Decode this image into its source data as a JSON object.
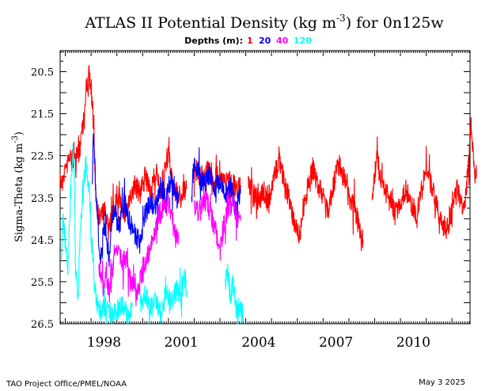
{
  "chart_data": {
    "type": "line",
    "title_main": "ATLAS II Potential Density (kg m",
    "title_exp": "-3",
    "title_tail": ") for 0n125w",
    "legend_label": "Depths (m):",
    "ylabel_main": "Sigma-Theta (kg m",
    "ylabel_exp": "-3",
    "ylabel_tail": ")",
    "x_ticks": [
      "1998",
      "2001",
      "2004",
      "2007",
      "2010"
    ],
    "x_range": [
      1996.8,
      2012.7
    ],
    "y_ticks": [
      "20.5",
      "21.5",
      "22.5",
      "23.5",
      "24.5",
      "25.5",
      "26.5"
    ],
    "y_range": [
      20.0,
      26.5
    ],
    "y_inverted": true,
    "grid": false,
    "legend_position": "top-center",
    "series": [
      {
        "name": "1",
        "color": "#ff0000",
        "segments": [
          [
            [
              1996.8,
              23.2
            ],
            [
              1997.0,
              22.8
            ],
            [
              1997.2,
              22.5
            ],
            [
              1997.4,
              22.6
            ],
            [
              1997.55,
              22.4
            ],
            [
              1997.65,
              21.8
            ],
            [
              1997.75,
              21.6
            ],
            [
              1997.8,
              21.0
            ],
            [
              1997.9,
              20.5
            ],
            [
              1998.0,
              20.9
            ],
            [
              1998.1,
              22.0
            ],
            [
              1998.2,
              23.6
            ],
            [
              1998.3,
              24.0
            ],
            [
              1998.5,
              23.8
            ],
            [
              1998.7,
              24.2
            ],
            [
              1998.9,
              23.7
            ],
            [
              1999.1,
              23.5
            ],
            [
              1999.3,
              23.9
            ],
            [
              1999.5,
              23.6
            ],
            [
              1999.7,
              23.2
            ],
            [
              1999.9,
              23.4
            ],
            [
              2000.1,
              23.0
            ],
            [
              2000.3,
              23.4
            ],
            [
              2000.5,
              22.9
            ],
            [
              2000.7,
              23.3
            ],
            [
              2000.9,
              22.8
            ],
            [
              2001.0,
              22.4
            ],
            [
              2001.1,
              23.0
            ],
            [
              2001.3,
              23.4
            ],
            [
              2001.5,
              23.5
            ],
            [
              2001.7,
              23.3
            ]
          ],
          [
            [
              2002.0,
              22.8
            ],
            [
              2002.2,
              22.9
            ],
            [
              2002.4,
              23.0
            ],
            [
              2002.6,
              22.8
            ],
            [
              2002.8,
              23.1
            ],
            [
              2003.0,
              22.9
            ],
            [
              2003.2,
              23.2
            ],
            [
              2003.4,
              23.0
            ],
            [
              2003.6,
              23.3
            ],
            [
              2003.8,
              23.2
            ]
          ],
          [
            [
              2004.1,
              23.1
            ],
            [
              2004.3,
              23.4
            ],
            [
              2004.5,
              23.6
            ],
            [
              2004.7,
              23.3
            ],
            [
              2004.9,
              23.7
            ],
            [
              2005.1,
              23.0
            ],
            [
              2005.3,
              22.6
            ],
            [
              2005.5,
              23.1
            ],
            [
              2005.7,
              23.6
            ],
            [
              2005.9,
              24.1
            ],
            [
              2006.1,
              24.4
            ],
            [
              2006.2,
              23.8
            ],
            [
              2006.4,
              23.3
            ],
            [
              2006.6,
              22.8
            ],
            [
              2006.8,
              23.2
            ],
            [
              2007.0,
              23.5
            ],
            [
              2007.2,
              23.8
            ],
            [
              2007.4,
              23.2
            ],
            [
              2007.6,
              22.7
            ],
            [
              2007.8,
              23.0
            ],
            [
              2008.0,
              23.5
            ],
            [
              2008.2,
              23.7
            ],
            [
              2008.4,
              24.2
            ],
            [
              2008.55,
              24.5
            ]
          ],
          [
            [
              2008.9,
              23.6
            ],
            [
              2009.0,
              22.9
            ],
            [
              2009.1,
              22.5
            ],
            [
              2009.2,
              23.0
            ],
            [
              2009.4,
              23.3
            ],
            [
              2009.6,
              23.6
            ],
            [
              2009.8,
              23.9
            ],
            [
              2010.0,
              23.6
            ],
            [
              2010.2,
              23.3
            ],
            [
              2010.4,
              23.6
            ],
            [
              2010.6,
              23.9
            ],
            [
              2010.8,
              23.4
            ],
            [
              2011.0,
              22.8
            ],
            [
              2011.2,
              23.2
            ],
            [
              2011.4,
              23.7
            ],
            [
              2011.6,
              24.1
            ],
            [
              2011.8,
              24.3
            ],
            [
              2012.0,
              23.8
            ],
            [
              2012.2,
              23.3
            ],
            [
              2012.4,
              23.8
            ],
            [
              2012.55,
              23.4
            ],
            [
              2012.65,
              22.6
            ],
            [
              2012.75,
              21.7
            ],
            [
              2012.85,
              22.8
            ],
            [
              2012.95,
              23.0
            ]
          ]
        ]
      },
      {
        "name": "20",
        "color": "#0000ff",
        "segments": [
          [
            [
              1998.05,
              23.2
            ],
            [
              1998.1,
              21.9
            ],
            [
              1998.2,
              23.5
            ],
            [
              1998.3,
              24.5
            ],
            [
              1998.4,
              25.0
            ],
            [
              1998.5,
              24.1
            ],
            [
              1998.6,
              24.6
            ],
            [
              1998.7,
              24.9
            ],
            [
              1998.8,
              24.0
            ],
            [
              1998.9,
              23.8
            ],
            [
              1999.1,
              24.2
            ],
            [
              1999.3,
              23.6
            ],
            [
              1999.5,
              24.1
            ],
            [
              1999.7,
              24.4
            ],
            [
              1999.9,
              24.6
            ],
            [
              2000.1,
              24.0
            ],
            [
              2000.3,
              23.5
            ],
            [
              2000.5,
              23.8
            ],
            [
              2000.7,
              23.2
            ],
            [
              2000.9,
              23.6
            ],
            [
              2001.1,
              23.0
            ],
            [
              2001.3,
              23.4
            ],
            [
              2001.4,
              23.6
            ]
          ],
          [
            [
              2001.9,
              23.4
            ],
            [
              2002.0,
              22.6
            ],
            [
              2002.2,
              23.0
            ],
            [
              2002.4,
              23.2
            ],
            [
              2002.6,
              22.9
            ],
            [
              2002.8,
              23.3
            ],
            [
              2003.0,
              23.1
            ],
            [
              2003.2,
              23.5
            ],
            [
              2003.4,
              23.2
            ],
            [
              2003.6,
              23.8
            ],
            [
              2003.8,
              23.3
            ]
          ]
        ]
      },
      {
        "name": "40",
        "color": "#ff00ff",
        "segments": [
          [
            [
              1998.3,
              25.0
            ],
            [
              1998.4,
              25.5
            ],
            [
              1998.5,
              25.7
            ],
            [
              1998.6,
              25.3
            ],
            [
              1998.7,
              25.8
            ],
            [
              1998.8,
              25.4
            ],
            [
              1998.9,
              24.8
            ],
            [
              1999.0,
              24.6
            ],
            [
              1999.2,
              25.1
            ],
            [
              1999.4,
              24.9
            ],
            [
              1999.6,
              25.6
            ],
            [
              1999.8,
              25.8
            ],
            [
              2000.0,
              25.2
            ],
            [
              2000.2,
              24.9
            ],
            [
              2000.4,
              24.4
            ],
            [
              2000.6,
              23.9
            ],
            [
              2000.8,
              23.8
            ],
            [
              2001.0,
              23.6
            ],
            [
              2001.2,
              24.2
            ],
            [
              2001.4,
              24.6
            ]
          ],
          [
            [
              2002.0,
              23.6
            ],
            [
              2002.2,
              23.9
            ],
            [
              2002.4,
              23.5
            ],
            [
              2002.6,
              23.8
            ],
            [
              2002.8,
              24.2
            ],
            [
              2003.0,
              24.8
            ],
            [
              2003.1,
              24.3
            ],
            [
              2003.3,
              23.8
            ],
            [
              2003.5,
              23.6
            ],
            [
              2003.7,
              24.0
            ],
            [
              2003.8,
              23.9
            ]
          ]
        ]
      },
      {
        "name": "120",
        "color": "#00ffff",
        "segments": [
          [
            [
              1996.85,
              24.8
            ],
            [
              1996.9,
              23.9
            ],
            [
              1997.0,
              24.6
            ],
            [
              1997.1,
              25.4
            ],
            [
              1997.2,
              23.4
            ],
            [
              1997.3,
              22.3
            ],
            [
              1997.35,
              23.0
            ],
            [
              1997.4,
              25.3
            ],
            [
              1997.5,
              25.9
            ],
            [
              1997.55,
              24.7
            ],
            [
              1997.6,
              24.0
            ],
            [
              1997.7,
              23.3
            ],
            [
              1997.8,
              22.6
            ],
            [
              1997.85,
              23.1
            ],
            [
              1997.9,
              23.0
            ],
            [
              1998.0,
              24.4
            ],
            [
              1998.1,
              25.2
            ],
            [
              1998.2,
              26.0
            ],
            [
              1998.4,
              26.2
            ],
            [
              1998.6,
              26.1
            ],
            [
              1998.8,
              26.3
            ],
            [
              1999.0,
              26.2
            ],
            [
              1999.2,
              26.0
            ],
            [
              1999.4,
              26.3
            ],
            [
              1999.6,
              26.1
            ]
          ],
          [
            [
              1999.9,
              26.0
            ],
            [
              2000.1,
              25.8
            ],
            [
              2000.3,
              26.1
            ],
            [
              2000.5,
              25.9
            ],
            [
              2000.7,
              26.2
            ],
            [
              2000.9,
              25.8
            ],
            [
              2001.1,
              26.0
            ],
            [
              2001.3,
              25.7
            ],
            [
              2001.5,
              25.9
            ],
            [
              2001.6,
              25.3
            ],
            [
              2001.7,
              25.7
            ]
          ],
          [
            [
              2003.2,
              25.6
            ],
            [
              2003.3,
              25.2
            ],
            [
              2003.4,
              25.9
            ],
            [
              2003.5,
              25.5
            ],
            [
              2003.6,
              26.0
            ],
            [
              2003.7,
              26.4
            ],
            [
              2003.8,
              26.1
            ],
            [
              2003.9,
              26.3
            ]
          ]
        ]
      }
    ]
  },
  "footer": {
    "left": "TAO Project Office/PMEL/NOAA",
    "right": "May  3 2025"
  }
}
